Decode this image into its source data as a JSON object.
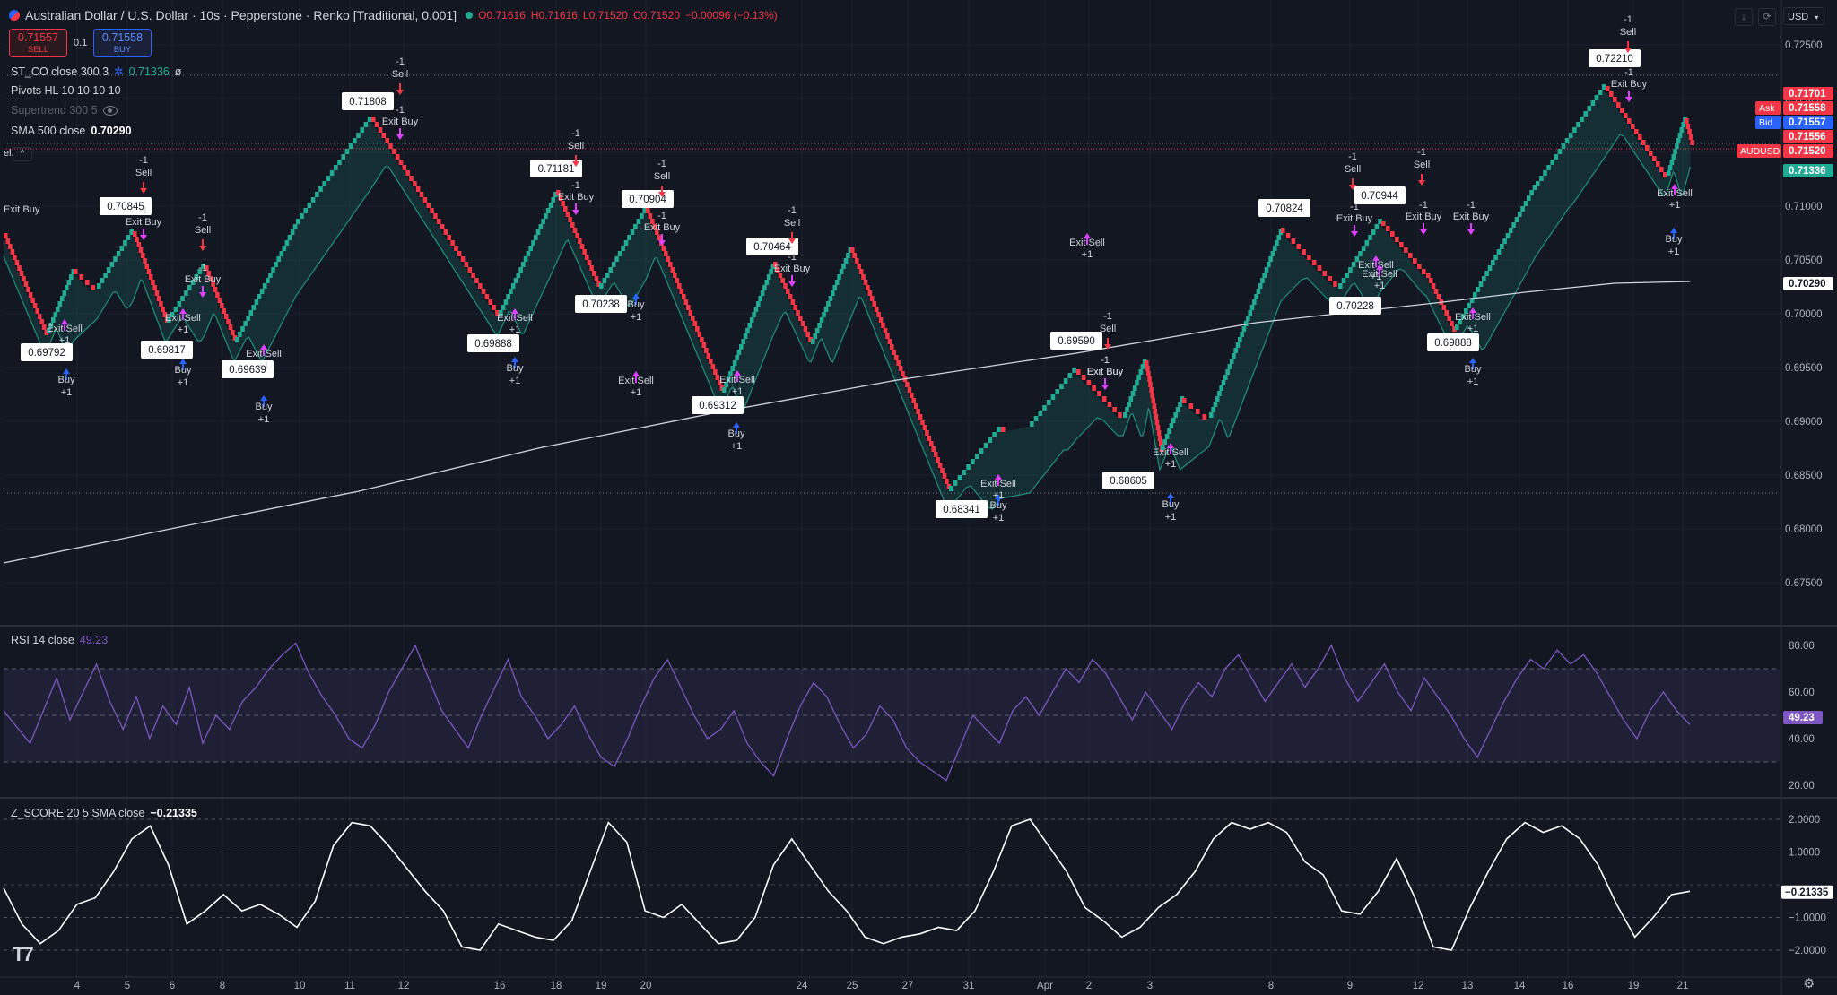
{
  "header": {
    "symbol_title": "Australian Dollar / U.S. Dollar · 10s · Pepperstone · Renko [Traditional, 0.001]",
    "ohlc": {
      "open": "O0.71616",
      "high": "H0.71616",
      "low": "L0.71520",
      "close": "C0.71520",
      "change": "−0.00096 (−0.13%)"
    },
    "currency": "USD"
  },
  "trade": {
    "sell_price": "0.71557",
    "sell_label": "SELL",
    "spread": "0.1",
    "buy_price": "0.71558",
    "buy_label": "BUY"
  },
  "indicators": {
    "st_co": {
      "name": "ST_CO close 300 3",
      "value": "0.71336",
      "extra": "ø"
    },
    "pivots": {
      "name": "Pivots HL 10 10 10 10"
    },
    "supertrend": {
      "name": "Supertrend 300 5"
    },
    "sma": {
      "name": "SMA 500 close",
      "value": "0.70290"
    },
    "rsi": {
      "name": "RSI 14 close",
      "value": "49.23"
    },
    "zscore": {
      "name": "Z_SCORE 20 5 SMA close",
      "value": "−0.21335"
    }
  },
  "price_axis": {
    "ticks": [
      "0.72500",
      "0.72000",
      "0.71500",
      "0.71000",
      "0.70500",
      "0.70000",
      "0.69500",
      "0.69000",
      "0.68500",
      "0.68000",
      "0.67500"
    ],
    "badges": [
      {
        "text": "0.71701",
        "prefix": "",
        "color": "#f23645"
      },
      {
        "text": "0.71558",
        "prefix": "Ask",
        "color": "#f23645"
      },
      {
        "text": "0.71557",
        "prefix": "Bid",
        "color": "#2962ff"
      },
      {
        "text": "0.71556",
        "prefix": "",
        "color": "#f23645"
      },
      {
        "text": "0.71520",
        "prefix": "AUDUSD",
        "color": "#f23645"
      },
      {
        "text": "0.71336",
        "prefix": "",
        "color": "#22ab94"
      },
      {
        "text": "0.70290",
        "prefix": "",
        "color": "#ffffff"
      }
    ]
  },
  "rsi_axis": {
    "ticks": [
      "80.00",
      "60.00",
      "40.00",
      "20.00"
    ],
    "badge": "49.23"
  },
  "z_axis": {
    "ticks": [
      "2.0000",
      "1.0000",
      "−1.0000",
      "−2.0000"
    ],
    "badge": "−0.21335"
  },
  "time_axis": {
    "labels": [
      "4",
      "5",
      "6",
      "8",
      "10",
      "11",
      "12",
      "16",
      "18",
      "19",
      "20",
      "24",
      "25",
      "27",
      "31",
      "Apr",
      "2",
      "3",
      "8",
      "9",
      "12",
      "13",
      "14",
      "16",
      "19",
      "21"
    ]
  },
  "pivot_labels": [
    "0.71808",
    "0.71181",
    "0.70904",
    "0.70845",
    "0.70464",
    "0.70238",
    "0.69792",
    "0.69817",
    "0.69639",
    "0.69888",
    "0.69312",
    "0.69590",
    "0.68605",
    "0.68341",
    "0.70824",
    "0.70944",
    "0.70228",
    "0.69888",
    "0.72210"
  ],
  "signals": {
    "sell": "Sell",
    "buy": "Buy",
    "exit_buy": "Exit Buy",
    "exit_sell": "Exit Sell",
    "minus_one": "-1",
    "plus_one": "+1",
    "partial_left": "el."
  },
  "colors": {
    "bg": "#131722",
    "up": "#22ab94",
    "down": "#f23645",
    "sma": "#d1d4dc",
    "rsi": "#7e57c2",
    "grid": "#1e222d"
  },
  "icons": [
    "tradingview-logo-icon",
    "settings-gear-icon",
    "eye-hidden-icon",
    "arrow-down-icon",
    "reset-icon",
    "chevron-down-icon",
    "collapse-icon"
  ]
}
